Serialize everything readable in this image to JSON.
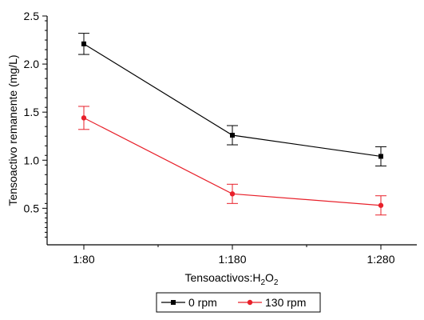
{
  "chart_data": {
    "type": "line",
    "xlabel": {
      "main": "Tensoactivos:H",
      "sub1": "2",
      "mid": "O",
      "sub2": "2"
    },
    "ylabel": "Tensoactivo remanente (mg/L)",
    "categories": [
      "1:80",
      "1:180",
      "1:280"
    ],
    "y_ticks": [
      "0.5",
      "1.0",
      "1.5",
      "2.0",
      "2.5"
    ],
    "y_tick_values": [
      0.5,
      1.0,
      1.5,
      2.0,
      2.5
    ],
    "ylim": [
      0.12,
      2.5
    ],
    "minor_ticks": true,
    "grid": false,
    "legend_position": "bottom-center",
    "series": [
      {
        "name": "0 rpm",
        "color": "#000000",
        "marker": "square",
        "values": [
          2.21,
          1.26,
          1.04
        ],
        "error": [
          0.11,
          0.1,
          0.1
        ]
      },
      {
        "name": "130 rpm",
        "color": "#e8202a",
        "marker": "circle",
        "values": [
          1.44,
          0.65,
          0.53
        ],
        "error": [
          0.12,
          0.1,
          0.1
        ]
      }
    ]
  }
}
